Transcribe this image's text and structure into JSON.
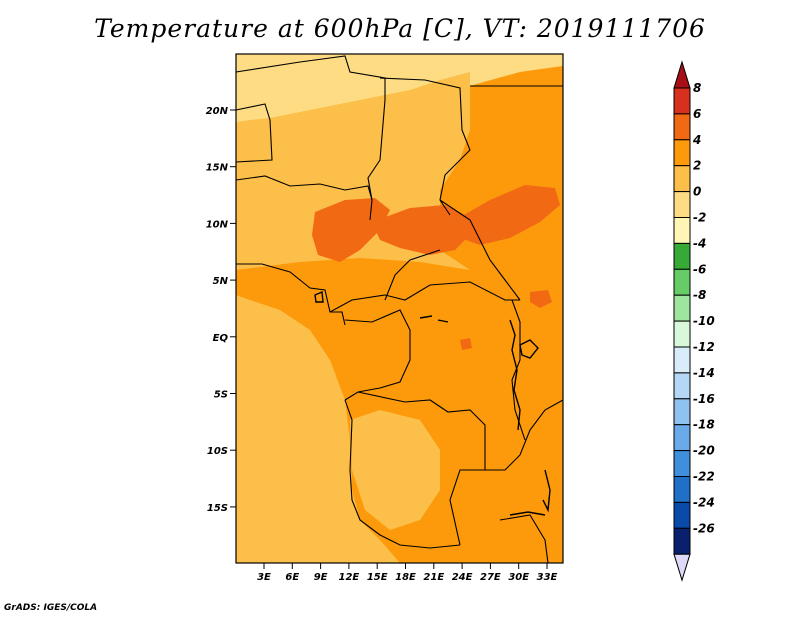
{
  "title": "Temperature at 600hPa [C], VT: 2019111706",
  "footer": "GrADS: IGES/COLA",
  "map": {
    "lon_ticks": [
      "3E",
      "6E",
      "9E",
      "12E",
      "15E",
      "18E",
      "21E",
      "24E",
      "27E",
      "30E",
      "33E"
    ],
    "lat_ticks": [
      "20N",
      "15N",
      "10N",
      "5N",
      "EQ",
      "5S",
      "10S",
      "15S"
    ]
  },
  "colorbar": {
    "labels": [
      "8",
      "6",
      "4",
      "2",
      "0",
      "-2",
      "-4",
      "-6",
      "-8",
      "-10",
      "-12",
      "-14",
      "-16",
      "-18",
      "-20",
      "-22",
      "-24",
      "-26"
    ],
    "colors": [
      "#a50f15",
      "#d7301f",
      "#f16913",
      "#fd9a0c",
      "#fcbf49",
      "#fddc84",
      "#fff6b5",
      "#37a937",
      "#66cc66",
      "#9ee69e",
      "#d9f7d9",
      "#d9ecfa",
      "#b4d7f5",
      "#8fc2f0",
      "#6aaae8",
      "#3f8fdc",
      "#2170c8",
      "#0a4aa8",
      "#08206e",
      "#ddd9f7"
    ]
  },
  "icons": {
    "arrow_up": "triangle-up-icon",
    "arrow_down": "triangle-down-icon"
  }
}
